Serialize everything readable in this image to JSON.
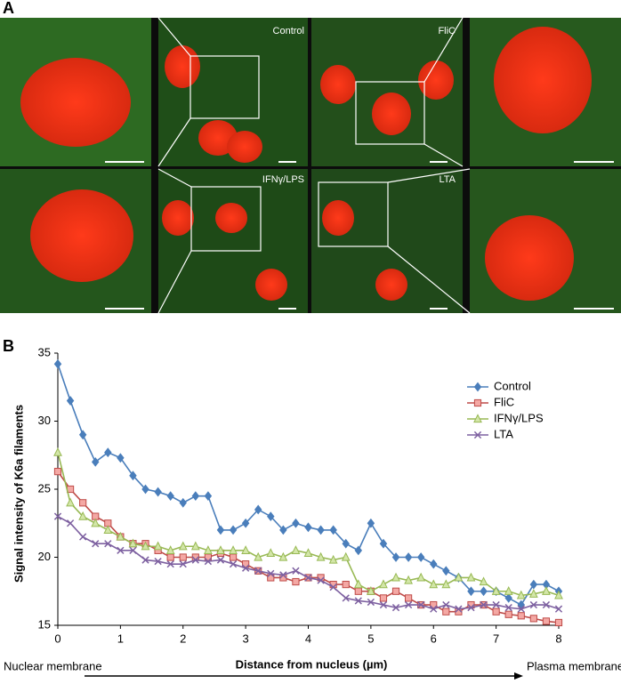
{
  "panel_a": {
    "label": "A",
    "images": [
      "Control",
      "FliC",
      "IFNγ/LPS",
      "LTA"
    ]
  },
  "panel_b_label": "B",
  "chart_data": {
    "type": "line",
    "y_label": "Signal intensity of K6a filaments",
    "x_label": "Distance from nucleus (µm)",
    "annotations": [
      "Nuclear membrane",
      "Plasma membrane"
    ],
    "xlim": [
      0,
      8
    ],
    "xticks": [
      0,
      1,
      2,
      3,
      4,
      5,
      6,
      7,
      8
    ],
    "ylim": [
      15,
      35
    ],
    "yticks": [
      15,
      20,
      25,
      30,
      35
    ],
    "grid": false,
    "legend": "top-right",
    "x": [
      0,
      0.2,
      0.4,
      0.6,
      0.8,
      1.0,
      1.2,
      1.4,
      1.6,
      1.8,
      2.0,
      2.2,
      2.4,
      2.6,
      2.8,
      3.0,
      3.2,
      3.4,
      3.6,
      3.8,
      4.0,
      4.2,
      4.4,
      4.6,
      4.8,
      5.0,
      5.2,
      5.4,
      5.6,
      5.8,
      6.0,
      6.2,
      6.4,
      6.6,
      6.8,
      7.0,
      7.2,
      7.4,
      7.6,
      7.8,
      8.0
    ],
    "series": [
      {
        "name": "Control",
        "color": "#4a7ebb",
        "marker": "diamond",
        "values": [
          34.2,
          31.5,
          29,
          27,
          27.7,
          27.3,
          26,
          25,
          24.8,
          24.5,
          24,
          24.5,
          24.5,
          22,
          22,
          22.5,
          23.5,
          23,
          22,
          22.5,
          22.2,
          22,
          22,
          21,
          20.5,
          22.5,
          21,
          20,
          20,
          20,
          19.5,
          19,
          18.5,
          17.5,
          17.5,
          17.5,
          17,
          16.5,
          18,
          18,
          17.5
        ]
      },
      {
        "name": "FliC",
        "color": "#be4b48",
        "marker": "square",
        "values": [
          26.3,
          25,
          24,
          23,
          22.5,
          21.5,
          21,
          21,
          20.5,
          20,
          20,
          20,
          20,
          20.3,
          20,
          19.5,
          19,
          18.5,
          18.5,
          18.2,
          18.5,
          18.5,
          18,
          18,
          17.5,
          17.5,
          17,
          17.5,
          17,
          16.5,
          16.5,
          16,
          16,
          16.5,
          16.5,
          16,
          15.8,
          15.7,
          15.5,
          15.3,
          15.2
        ]
      },
      {
        "name": "IFNγ/LPS",
        "color": "#98b954",
        "marker": "triangle",
        "values": [
          27.7,
          24,
          23,
          22.5,
          22,
          21.5,
          21,
          20.8,
          20.8,
          20.5,
          20.8,
          20.8,
          20.5,
          20.5,
          20.5,
          20.5,
          20,
          20.3,
          20,
          20.5,
          20.3,
          20,
          19.8,
          20,
          18,
          17.5,
          18,
          18.5,
          18.3,
          18.5,
          18,
          18,
          18.5,
          18.5,
          18.2,
          17.5,
          17.5,
          17.2,
          17.3,
          17.5,
          17.2
        ]
      },
      {
        "name": "LTA",
        "color": "#7d60a0",
        "marker": "cross",
        "values": [
          23,
          22.5,
          21.5,
          21,
          21,
          20.5,
          20.5,
          19.8,
          19.7,
          19.5,
          19.5,
          19.8,
          19.7,
          19.8,
          19.5,
          19.2,
          19,
          18.8,
          18.7,
          19,
          18.5,
          18.3,
          17.8,
          17,
          16.8,
          16.7,
          16.5,
          16.3,
          16.5,
          16.5,
          16.2,
          16.5,
          16.2,
          16.3,
          16.5,
          16.5,
          16.3,
          16.2,
          16.5,
          16.5,
          16.2
        ]
      }
    ]
  }
}
